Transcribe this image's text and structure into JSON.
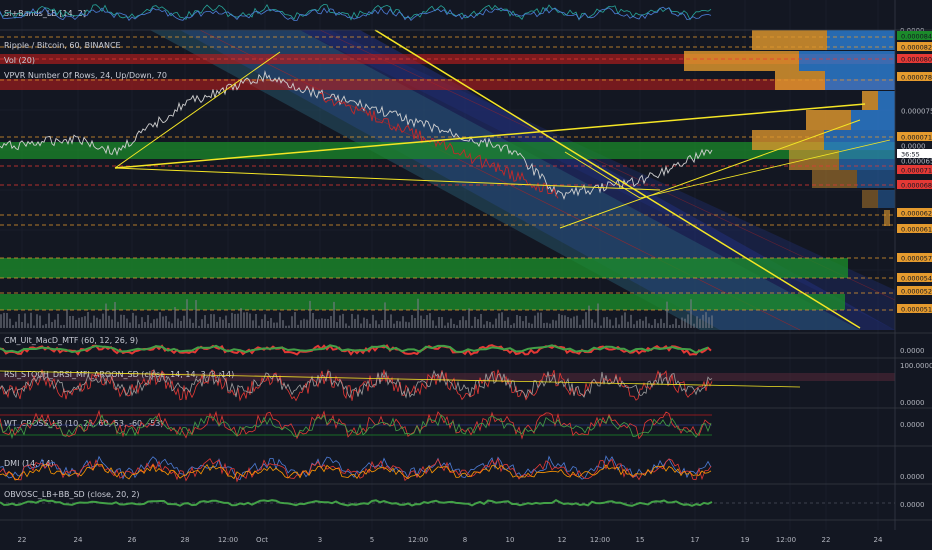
{
  "colors": {
    "background": "#131722",
    "grid": "#1e2230",
    "separator": "#363a45",
    "axis_text": "#b2b5be",
    "green_zone": "#1b8a2a",
    "red_zone": "#b71c1c",
    "orange_dash": "#e59b2e",
    "yellow_line": "#f5e625",
    "channel_blue": "#23307a",
    "channel_teal": "#2a5f75",
    "price_line": "#d0d0d0"
  },
  "panes": {
    "top_indicator": {
      "label": "SI+Bands_LB [14, 2]",
      "axis_value": "0.0000"
    },
    "main": {
      "legend": [
        "Ripple / Bitcoin, 60, BINANCE",
        "Vol (20)",
        "VPVR Number Of Rows, 24, Up/Down, 70"
      ]
    },
    "macd": {
      "label": "CM_Ult_MacD_MTF (60, 12, 26, 9)",
      "axis_value": "0.0000"
    },
    "rsi": {
      "label": "RSI_STOCH_DRSI_MFI_AROON_SD (close, 14, 14, 3, 3, 14)",
      "axis_values": [
        "100.0000",
        "0.0000"
      ]
    },
    "wt": {
      "label": "WT_CROSS_LB (10, 21, 60, 53, -60, -53)",
      "axis_value": "0.0000"
    },
    "dmi": {
      "label": "DMI (14, 14)",
      "axis_value": "0.0000"
    },
    "obv": {
      "label": "OBVOSC_LB+BB_SD (close, 20, 2)",
      "axis_value": "0.0000"
    }
  },
  "price_axis": [
    {
      "value": "0.00008422",
      "tag": "green"
    },
    {
      "value": "0.00008236",
      "tag": "orange"
    },
    {
      "value": "0.00008086",
      "tag": "red"
    },
    {
      "value": "0.00007863",
      "tag": "orange"
    },
    {
      "value": "0.00007500",
      "tag": "none"
    },
    {
      "value": "0.00007165",
      "tag": "orange"
    },
    {
      "value": "0.0000",
      "tag": "none"
    },
    {
      "value": "36:55",
      "tag": "white"
    },
    {
      "value": "0.00007157",
      "tag": "red"
    },
    {
      "value": "0.00006500",
      "tag": "none"
    },
    {
      "value": "0.00006820",
      "tag": "red"
    },
    {
      "value": "0.00006247",
      "tag": "orange"
    },
    {
      "value": "0.00006149",
      "tag": "orange"
    },
    {
      "value": "0.00005712",
      "tag": "orange"
    },
    {
      "value": "0.00005478",
      "tag": "orange"
    },
    {
      "value": "0.00005252",
      "tag": "orange"
    },
    {
      "value": "0.00005130",
      "tag": "orange"
    }
  ],
  "time_axis": [
    "22",
    "24",
    "26",
    "28",
    "12:00",
    "Oct",
    "3",
    "5",
    "12:00",
    "8",
    "10",
    "12",
    "12:00",
    "15",
    "17",
    "19",
    "12:00",
    "22",
    "24"
  ],
  "chart_data": {
    "type": "line",
    "title": "Ripple / Bitcoin, 60, BINANCE",
    "xlabel": "",
    "ylabel": "",
    "x": [
      "22",
      "24",
      "26",
      "28",
      "Oct",
      "3",
      "5",
      "8",
      "10",
      "12",
      "15",
      "17"
    ],
    "series": [
      {
        "values": [
          7.21e-05,
          7.35e-05,
          7.12e-05,
          7.9e-05,
          8.32e-05,
          8.05e-05,
          7.82e-05,
          7.35e-05,
          7.18e-05,
          6.45e-05,
          6.68e-05,
          7.16e-05
        ]
      }
    ],
    "support_resistance_levels": [
      8.422e-05,
      8.236e-05,
      8.086e-05,
      7.863e-05,
      7.165e-05,
      7.157e-05,
      6.82e-05,
      6.247e-05,
      6.149e-05,
      5.712e-05,
      5.478e-05,
      5.252e-05,
      5.13e-05
    ],
    "grid": true,
    "legend": "top-left"
  }
}
